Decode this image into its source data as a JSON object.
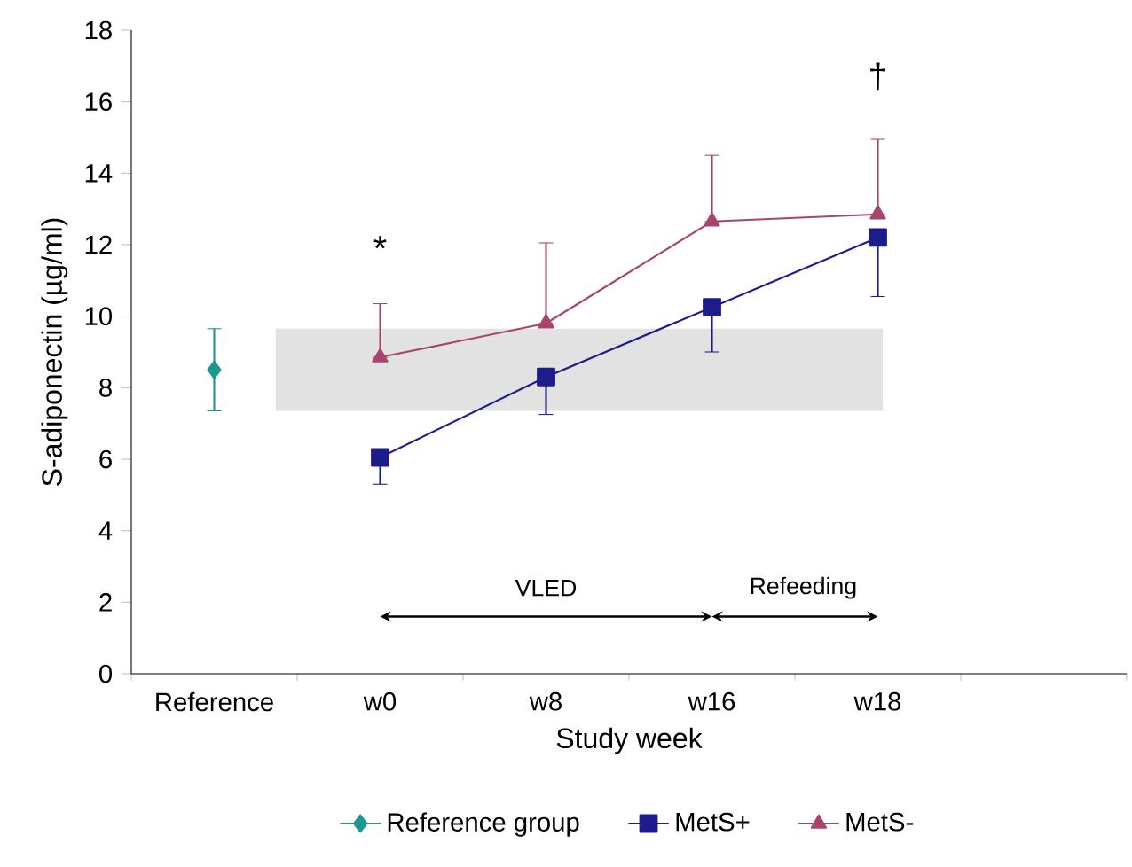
{
  "chart_data": {
    "type": "line",
    "xlabel": "Study week",
    "ylabel": "S-adiponectin (µg/ml)",
    "categories": [
      "Reference",
      "w0",
      "w8",
      "w16",
      "w18",
      null
    ],
    "series": [
      {
        "name": "Reference group",
        "color": "#1a9a8f",
        "marker": "diamond",
        "values": [
          8.5,
          null,
          null,
          null,
          null,
          null
        ],
        "errors": [
          [
            7.35,
            9.65
          ],
          null,
          null,
          null,
          null,
          null
        ]
      },
      {
        "name": "MetS+",
        "color": "#1c1c8a",
        "marker": "square",
        "values": [
          null,
          6.05,
          8.3,
          10.25,
          12.2,
          null
        ],
        "errors": [
          null,
          [
            5.3,
            6.05
          ],
          [
            7.25,
            8.3
          ],
          [
            9.0,
            10.25
          ],
          [
            10.55,
            12.2
          ],
          null
        ]
      },
      {
        "name": "MetS-",
        "color": "#a8456f",
        "marker": "triangle",
        "values": [
          null,
          8.85,
          9.8,
          12.65,
          12.85,
          null
        ],
        "errors": [
          null,
          [
            8.85,
            10.35
          ],
          [
            9.8,
            12.05
          ],
          [
            12.65,
            14.5
          ],
          [
            12.85,
            14.95
          ],
          null
        ]
      }
    ],
    "ylim": [
      0,
      18
    ],
    "yticks": [
      0,
      2,
      4,
      6,
      8,
      10,
      12,
      14,
      16,
      18
    ],
    "bands": [
      {
        "axis": "y",
        "from": 7.35,
        "to": 9.65,
        "color": "#e2e2e2"
      }
    ],
    "annotations": [
      "*",
      "†",
      "VLED",
      "Refeeding"
    ],
    "legend": "bottom",
    "grid": false
  }
}
